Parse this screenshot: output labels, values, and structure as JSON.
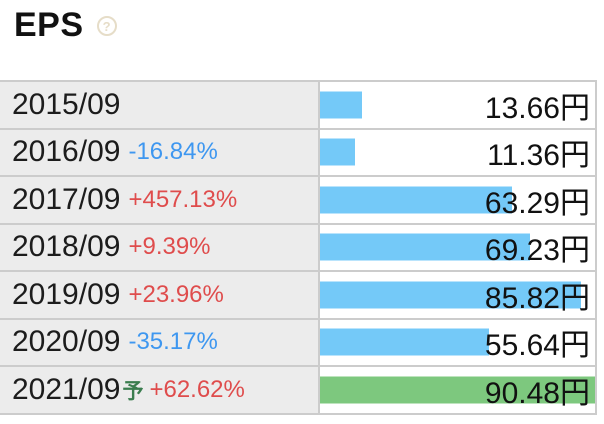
{
  "header": {
    "title": "EPS",
    "help_glyph": "?"
  },
  "colors": {
    "bar_blue": "#74c9f8",
    "bar_green": "#7dc87e",
    "pct_up": "#df4c4c",
    "pct_down": "#3e97f0",
    "forecast_mark": "#3a7d4e",
    "row_label_bg": "#ececec",
    "border": "#cccccc",
    "help_icon": "#e6ddc8"
  },
  "chart_data": {
    "type": "bar",
    "title": "EPS",
    "unit": "円",
    "orientation": "horizontal",
    "max_value": 90.48,
    "categories": [
      "2015/09",
      "2016/09",
      "2017/09",
      "2018/09",
      "2019/09",
      "2020/09",
      "2021/09予"
    ],
    "values": [
      13.66,
      11.36,
      63.29,
      69.23,
      85.82,
      55.64,
      90.48
    ],
    "changes": [
      "",
      "-16.84%",
      "+457.13%",
      "+9.39%",
      "+23.96%",
      "-35.17%",
      "+62.62%"
    ],
    "bar_colors": [
      "blue",
      "blue",
      "blue",
      "blue",
      "blue",
      "blue",
      "green"
    ]
  },
  "rows": [
    {
      "year": "2015/09",
      "forecast_mark": "",
      "change": "",
      "change_dir": "",
      "value": 13.66,
      "unit": "円",
      "bar": "blue"
    },
    {
      "year": "2016/09",
      "forecast_mark": "",
      "change": "-16.84%",
      "change_dir": "down",
      "value": 11.36,
      "unit": "円",
      "bar": "blue"
    },
    {
      "year": "2017/09",
      "forecast_mark": "",
      "change": "+457.13%",
      "change_dir": "up",
      "value": 63.29,
      "unit": "円",
      "bar": "blue"
    },
    {
      "year": "2018/09",
      "forecast_mark": "",
      "change": "+9.39%",
      "change_dir": "up",
      "value": 69.23,
      "unit": "円",
      "bar": "blue"
    },
    {
      "year": "2019/09",
      "forecast_mark": "",
      "change": "+23.96%",
      "change_dir": "up",
      "value": 85.82,
      "unit": "円",
      "bar": "blue"
    },
    {
      "year": "2020/09",
      "forecast_mark": "",
      "change": "-35.17%",
      "change_dir": "down",
      "value": 55.64,
      "unit": "円",
      "bar": "blue"
    },
    {
      "year": "2021/09",
      "forecast_mark": "予",
      "change": "+62.62%",
      "change_dir": "up",
      "value": 90.48,
      "unit": "円",
      "bar": "green"
    }
  ]
}
